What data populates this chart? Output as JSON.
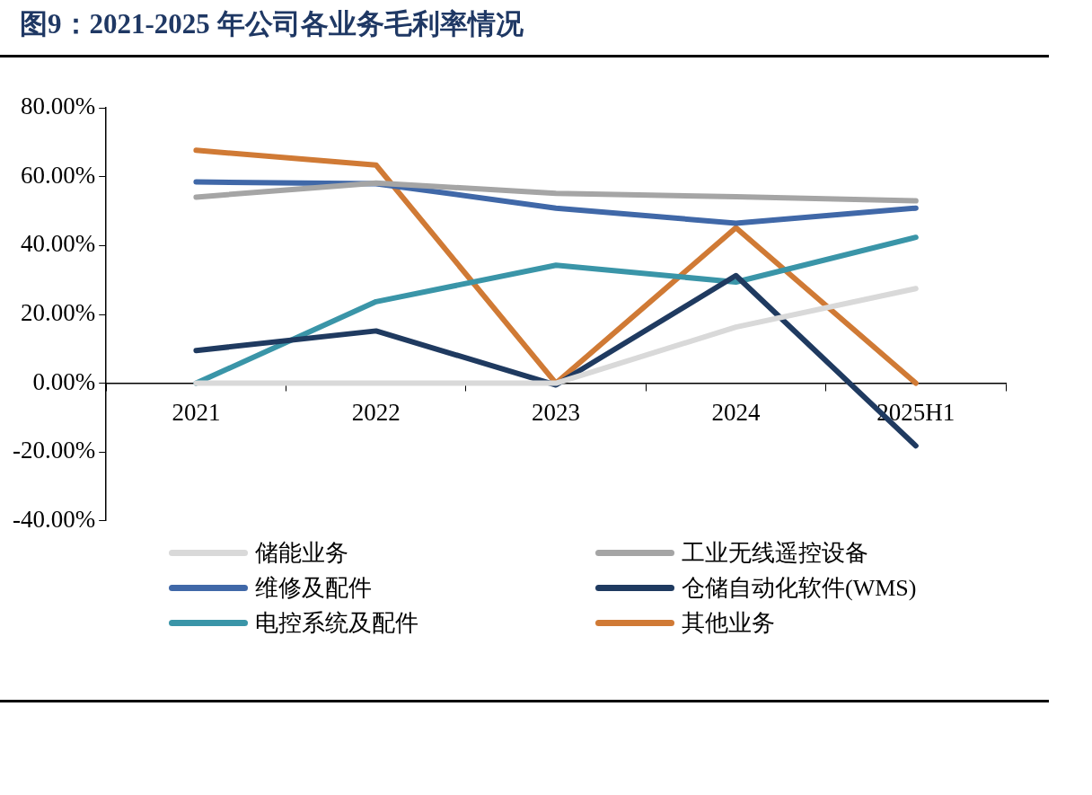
{
  "chart_data": {
    "type": "line",
    "title": "图9：2021-2025 年公司各业务毛利率情况",
    "categories": [
      "2021",
      "2022",
      "2023",
      "2024",
      "2025H1"
    ],
    "series": [
      {
        "name": "储能业务",
        "color": "#d9d9d9",
        "values": [
          0,
          0,
          0,
          16.3,
          27.5
        ]
      },
      {
        "name": "工业无线遥控设备",
        "color": "#a5a5a5",
        "values": [
          54.1,
          58.2,
          55.2,
          54.2,
          53
        ]
      },
      {
        "name": "维修及配件",
        "color": "#4068a8",
        "values": [
          58.5,
          58,
          50.9,
          46.5,
          50.9
        ]
      },
      {
        "name": "仓储自动化软件(WMS)",
        "color": "#1f3a60",
        "values": [
          9.5,
          15.2,
          -0.5,
          31.3,
          -18.2
        ]
      },
      {
        "name": "电控系统及配件",
        "color": "#3a95a8",
        "values": [
          0,
          23.7,
          34.3,
          29.4,
          42.4
        ]
      },
      {
        "name": "其他业务",
        "color": "#d07a35",
        "values": [
          67.7,
          63.4,
          0,
          45.2,
          0
        ]
      }
    ],
    "ylim": [
      -40,
      80
    ],
    "yticks": [
      {
        "value": -40,
        "label": "-40.00%"
      },
      {
        "value": -20,
        "label": "-20.00%"
      },
      {
        "value": 0,
        "label": "0.00%"
      },
      {
        "value": 20,
        "label": "20.00%"
      },
      {
        "value": 40,
        "label": "40.00%"
      },
      {
        "value": 60,
        "label": "60.00%"
      },
      {
        "value": 80,
        "label": "80.00%"
      }
    ],
    "grid": false,
    "legend": "bottom",
    "marker": "none",
    "line_style": "solid"
  }
}
